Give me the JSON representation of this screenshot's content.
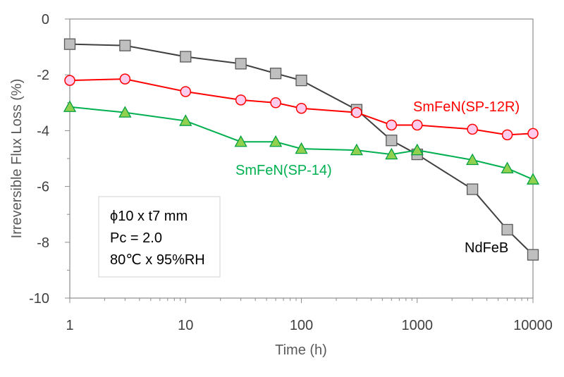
{
  "chart_data": {
    "type": "line",
    "xscale": "log",
    "xlabel": "Time (h)",
    "ylabel": "Irreversible Flux Loss (%)",
    "xlim": [
      1,
      10000
    ],
    "ylim": [
      -10,
      0
    ],
    "xticks": [
      "1",
      "10",
      "100",
      "1000",
      "10000"
    ],
    "yticks": [
      "0",
      "-2",
      "-4",
      "-6",
      "-8",
      "-10"
    ],
    "series": [
      {
        "name": "NdFeB",
        "marker": "square",
        "line_color": "#404040",
        "marker_fill": "#bfbfbf",
        "marker_stroke": "#595959",
        "label_color": "#000000",
        "x": [
          1,
          3,
          10,
          30,
          60,
          100,
          300,
          600,
          1000,
          3000,
          6000,
          10000
        ],
        "y": [
          -0.9,
          -0.95,
          -1.35,
          -1.6,
          -1.95,
          -2.2,
          -3.25,
          -4.35,
          -4.85,
          -6.1,
          -7.55,
          -8.45
        ]
      },
      {
        "name": "SmFeN(SP-12R)",
        "marker": "circle",
        "line_color": "#ff0000",
        "marker_fill": "#ffccee",
        "marker_stroke": "#ff0000",
        "label_color": "#ff0000",
        "x": [
          1,
          3,
          10,
          30,
          60,
          100,
          300,
          600,
          1000,
          3000,
          6000,
          10000
        ],
        "y": [
          -2.2,
          -2.15,
          -2.6,
          -2.9,
          -3.0,
          -3.2,
          -3.35,
          -3.8,
          -3.8,
          -3.95,
          -4.15,
          -4.1
        ]
      },
      {
        "name": "SmFeN(SP-14)",
        "marker": "triangle",
        "line_color": "#00b050",
        "marker_fill": "#92d050",
        "marker_stroke": "#00a040",
        "label_color": "#00b050",
        "x": [
          1,
          3,
          10,
          30,
          60,
          100,
          300,
          600,
          1000,
          3000,
          6000,
          10000
        ],
        "y": [
          -3.15,
          -3.35,
          -3.65,
          -4.4,
          -4.4,
          -4.65,
          -4.7,
          -4.85,
          -4.7,
          -5.05,
          -5.35,
          -5.75
        ]
      }
    ],
    "annotation_lines": [
      "ϕ10 x t7 mm",
      "Pc = 2.0",
      "80℃ x 95%RH"
    ]
  }
}
